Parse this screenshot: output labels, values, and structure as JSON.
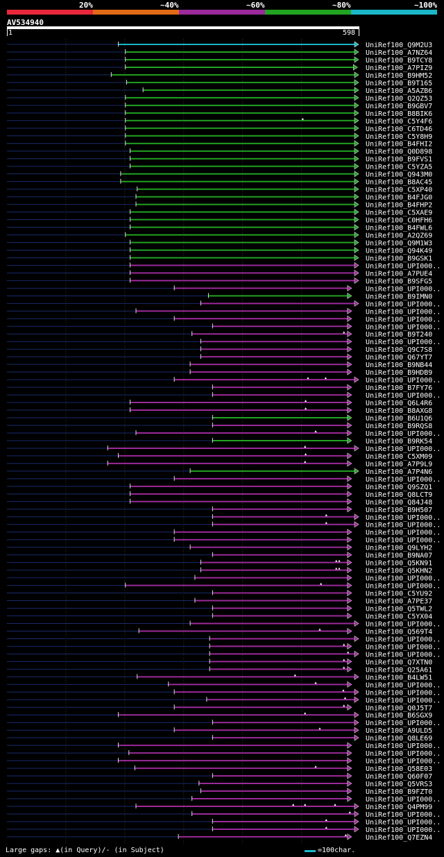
{
  "legend": {
    "labels": [
      "20%",
      "~40%",
      "~60%",
      "~80%",
      "~100%"
    ],
    "colors": [
      "#e8283a",
      "#e06a16",
      "#9b2a9a",
      "#22a322",
      "#1ab7c9"
    ]
  },
  "query": {
    "id": "AV534940",
    "start": "1",
    "end": "598"
  },
  "footer": {
    "gaps_note": "Large gaps: ▲(in Query)/- (in Subject)",
    "scale_note": "=100char."
  },
  "chart_data": {
    "type": "alignment",
    "query_length": 598,
    "bands": [
      "20%",
      "~40%",
      "~60%",
      "~80%",
      "~100%"
    ],
    "hits": [
      {
        "name": "UniRef100_Q9M2U3",
        "start": 190,
        "end": 598,
        "band": "~100%"
      },
      {
        "name": "UniRef100_A7NZ64",
        "start": 202,
        "end": 598,
        "band": "~80%"
      },
      {
        "name": "UniRef100_B9TCY8",
        "start": 202,
        "end": 598,
        "band": "~80%"
      },
      {
        "name": "UniRef100_A7PIZ9",
        "start": 202,
        "end": 596,
        "band": "~80%"
      },
      {
        "name": "UniRef100_B9HM52",
        "start": 178,
        "end": 598,
        "band": "~80%"
      },
      {
        "name": "UniRef100_B9T165",
        "start": 204,
        "end": 598,
        "band": "~80%"
      },
      {
        "name": "UniRef100_A5AZB6",
        "start": 232,
        "end": 598,
        "band": "~80%"
      },
      {
        "name": "UniRef100_Q2QZ53",
        "start": 202,
        "end": 598,
        "band": "~80%"
      },
      {
        "name": "UniRef100_B9GBV7",
        "start": 202,
        "end": 598,
        "band": "~80%"
      },
      {
        "name": "UniRef100_B8BIK6",
        "start": 202,
        "end": 598,
        "band": "~80%"
      },
      {
        "name": "UniRef100_C5Y4F6",
        "start": 202,
        "end": 598,
        "band": "~80%",
        "gaps": [
          503
        ]
      },
      {
        "name": "UniRef100_C6TD46",
        "start": 202,
        "end": 598,
        "band": "~80%"
      },
      {
        "name": "UniRef100_C5Y8H9",
        "start": 202,
        "end": 598,
        "band": "~80%"
      },
      {
        "name": "UniRef100_B4FHI2",
        "start": 202,
        "end": 598,
        "band": "~80%"
      },
      {
        "name": "UniRef100_Q0D898",
        "start": 210,
        "end": 598,
        "band": "~80%"
      },
      {
        "name": "UniRef100_B9FVS1",
        "start": 210,
        "end": 598,
        "band": "~80%"
      },
      {
        "name": "UniRef100_C5YZA5",
        "start": 210,
        "end": 598,
        "band": "~80%"
      },
      {
        "name": "UniRef100_Q943M0",
        "start": 194,
        "end": 598,
        "band": "~80%"
      },
      {
        "name": "UniRef100_B8AC45",
        "start": 194,
        "end": 598,
        "band": "~80%"
      },
      {
        "name": "UniRef100_C5XP40",
        "start": 222,
        "end": 598,
        "band": "~80%"
      },
      {
        "name": "UniRef100_B4FJG0",
        "start": 220,
        "end": 598,
        "band": "~80%"
      },
      {
        "name": "UniRef100_B4FHP2",
        "start": 220,
        "end": 598,
        "band": "~80%"
      },
      {
        "name": "UniRef100_C5XAE9",
        "start": 210,
        "end": 598,
        "band": "~80%"
      },
      {
        "name": "UniRef100_C0HFH6",
        "start": 210,
        "end": 598,
        "band": "~80%"
      },
      {
        "name": "UniRef100_B4FWL6",
        "start": 210,
        "end": 598,
        "band": "~80%"
      },
      {
        "name": "UniRef100_A2QZ69",
        "start": 202,
        "end": 598,
        "band": "~80%"
      },
      {
        "name": "UniRef100_Q9M1W3",
        "start": 210,
        "end": 598,
        "band": "~80%"
      },
      {
        "name": "UniRef100_Q94K49",
        "start": 210,
        "end": 598,
        "band": "~80%"
      },
      {
        "name": "UniRef100_B9GSK1",
        "start": 210,
        "end": 598,
        "band": "~80%"
      },
      {
        "name": "UniRef100_UPI000..",
        "start": 210,
        "end": 598,
        "band": "~60%"
      },
      {
        "name": "UniRef100_A7PUE4",
        "start": 210,
        "end": 598,
        "band": "~60%"
      },
      {
        "name": "UniRef100_B9SFG5",
        "start": 210,
        "end": 598,
        "band": "~60%"
      },
      {
        "name": "UniRef100_UPI000..",
        "start": 285,
        "end": 586,
        "band": "~60%"
      },
      {
        "name": "UniRef100_B9IMN0",
        "start": 343,
        "end": 586,
        "band": "~80%"
      },
      {
        "name": "UniRef100_UPI000..",
        "start": 330,
        "end": 598,
        "band": "~60%"
      },
      {
        "name": "UniRef100_UPI000..",
        "start": 220,
        "end": 586,
        "band": "~60%"
      },
      {
        "name": "UniRef100_UPI000..",
        "start": 285,
        "end": 586,
        "band": "~60%"
      },
      {
        "name": "UniRef100_UPI000..",
        "start": 350,
        "end": 586,
        "band": "~60%"
      },
      {
        "name": "UniRef100_B9T240",
        "start": 315,
        "end": 586,
        "band": "~60%",
        "gaps": [
          573
        ]
      },
      {
        "name": "UniRef100_UPI000..",
        "start": 330,
        "end": 586,
        "band": "~60%"
      },
      {
        "name": "UniRef100_Q9C7S8",
        "start": 330,
        "end": 586,
        "band": "~60%"
      },
      {
        "name": "UniRef100_Q67YT7",
        "start": 330,
        "end": 586,
        "band": "~60%"
      },
      {
        "name": "UniRef100_B9NB44",
        "start": 312,
        "end": 586,
        "band": "~60%"
      },
      {
        "name": "UniRef100_B9HDB9",
        "start": 312,
        "end": 586,
        "band": "~60%"
      },
      {
        "name": "UniRef100_UPI000..",
        "start": 285,
        "end": 598,
        "band": "~60%",
        "gaps": [
          512,
          542
        ]
      },
      {
        "name": "UniRef100_B7FY76",
        "start": 350,
        "end": 586,
        "band": "~60%"
      },
      {
        "name": "UniRef100_UPI000..",
        "start": 350,
        "end": 586,
        "band": "~60%"
      },
      {
        "name": "UniRef100_Q6L4R6",
        "start": 210,
        "end": 586,
        "band": "~60%",
        "gaps": [
          508
        ]
      },
      {
        "name": "UniRef100_B8AXG8",
        "start": 210,
        "end": 586,
        "band": "~60%",
        "gaps": [
          508
        ]
      },
      {
        "name": "UniRef100_B6U1Q6",
        "start": 350,
        "end": 586,
        "band": "~80%"
      },
      {
        "name": "UniRef100_B9RQS8",
        "start": 350,
        "end": 586,
        "band": "~60%"
      },
      {
        "name": "UniRef100_UPI000..",
        "start": 220,
        "end": 586,
        "band": "~60%",
        "gaps": [
          525
        ]
      },
      {
        "name": "UniRef100_B9RK54",
        "start": 350,
        "end": 586,
        "band": "~80%"
      },
      {
        "name": "UniRef100_UPI000..",
        "start": 172,
        "end": 598,
        "band": "~60%",
        "gaps": [
          507
        ]
      },
      {
        "name": "UniRef100_C5XM09",
        "start": 190,
        "end": 586,
        "band": "~60%",
        "gaps": [
          508
        ]
      },
      {
        "name": "UniRef100_A7P9L9",
        "start": 172,
        "end": 586,
        "band": "~60%",
        "gaps": [
          507
        ]
      },
      {
        "name": "UniRef100_A7P4N6",
        "start": 312,
        "end": 598,
        "band": "~80%"
      },
      {
        "name": "UniRef100_UPI000..",
        "start": 285,
        "end": 586,
        "band": "~60%"
      },
      {
        "name": "UniRef100_Q9SZQ1",
        "start": 210,
        "end": 586,
        "band": "~60%"
      },
      {
        "name": "UniRef100_Q8LCT9",
        "start": 210,
        "end": 586,
        "band": "~60%"
      },
      {
        "name": "UniRef100_Q84J48",
        "start": 210,
        "end": 586,
        "band": "~60%"
      },
      {
        "name": "UniRef100_B9H507",
        "start": 350,
        "end": 586,
        "band": "~60%"
      },
      {
        "name": "UniRef100_UPI000..",
        "start": 350,
        "end": 598,
        "band": "~60%",
        "gaps": [
          543
        ]
      },
      {
        "name": "UniRef100_UPI000..",
        "start": 350,
        "end": 598,
        "band": "~60%",
        "gaps": [
          543
        ]
      },
      {
        "name": "UniRef100_UPI000..",
        "start": 285,
        "end": 586,
        "band": "~60%"
      },
      {
        "name": "UniRef100_UPI000..",
        "start": 285,
        "end": 586,
        "band": "~60%"
      },
      {
        "name": "UniRef100_Q9LYH2",
        "start": 312,
        "end": 586,
        "band": "~60%"
      },
      {
        "name": "UniRef100_B9NA07",
        "start": 350,
        "end": 586,
        "band": "~60%"
      },
      {
        "name": "UniRef100_Q5KN91",
        "start": 330,
        "end": 586,
        "band": "~60%",
        "gaps": [
          560,
          565
        ]
      },
      {
        "name": "UniRef100_Q5KHN2",
        "start": 330,
        "end": 586,
        "band": "~60%",
        "gaps": [
          560,
          565
        ]
      },
      {
        "name": "UniRef100_UPI000..",
        "start": 320,
        "end": 586,
        "band": "~60%"
      },
      {
        "name": "UniRef100_UPI000..",
        "start": 202,
        "end": 586,
        "band": "~60%",
        "gaps": [
          534
        ]
      },
      {
        "name": "UniRef100_C5YU92",
        "start": 350,
        "end": 586,
        "band": "~60%"
      },
      {
        "name": "UniRef100_A7PE37",
        "start": 320,
        "end": 586,
        "band": "~60%"
      },
      {
        "name": "UniRef100_Q5TWL2",
        "start": 350,
        "end": 586,
        "band": "~60%"
      },
      {
        "name": "UniRef100_C5YX04",
        "start": 350,
        "end": 586,
        "band": "~60%"
      },
      {
        "name": "UniRef100_UPI000..",
        "start": 312,
        "end": 598,
        "band": "~60%"
      },
      {
        "name": "UniRef100_Q569T4",
        "start": 225,
        "end": 586,
        "band": "~60%",
        "gaps": [
          532
        ]
      },
      {
        "name": "UniRef100_UPI000..",
        "start": 345,
        "end": 598,
        "band": "~60%"
      },
      {
        "name": "UniRef100_UPI000..",
        "start": 345,
        "end": 586,
        "band": "~60%",
        "gaps": [
          573
        ]
      },
      {
        "name": "UniRef100_UPI000..",
        "start": 345,
        "end": 598,
        "band": "~60%",
        "gaps": [
          580
        ]
      },
      {
        "name": "UniRef100_Q7XTN0",
        "start": 345,
        "end": 586,
        "band": "~60%",
        "gaps": [
          573
        ]
      },
      {
        "name": "UniRef100_Q25A61",
        "start": 345,
        "end": 586,
        "band": "~60%",
        "gaps": [
          573
        ]
      },
      {
        "name": "UniRef100_B4LW51",
        "start": 222,
        "end": 598,
        "band": "~60%",
        "gaps": [
          490
        ]
      },
      {
        "name": "UniRef100_UPI000..",
        "start": 275,
        "end": 586,
        "band": "~60%",
        "gaps": [
          525
        ]
      },
      {
        "name": "UniRef100_UPI000..",
        "start": 285,
        "end": 598,
        "band": "~60%",
        "gaps": [
          572
        ]
      },
      {
        "name": "UniRef100_UPI000..",
        "start": 340,
        "end": 598,
        "band": "~60%",
        "gaps": [
          575
        ]
      },
      {
        "name": "UniRef100_Q0J5T7",
        "start": 285,
        "end": 586,
        "band": "~60%",
        "gaps": [
          573
        ]
      },
      {
        "name": "UniRef100_B6SGX9",
        "start": 190,
        "end": 598,
        "band": "~60%",
        "gaps": [
          507
        ]
      },
      {
        "name": "UniRef100_UPI000..",
        "start": 350,
        "end": 598,
        "band": "~60%"
      },
      {
        "name": "UniRef100_A9ULD5",
        "start": 285,
        "end": 598,
        "band": "~60%",
        "gaps": [
          532
        ]
      },
      {
        "name": "UniRef100_Q8LE69",
        "start": 350,
        "end": 598,
        "band": "~60%"
      },
      {
        "name": "UniRef100_UPI000..",
        "start": 190,
        "end": 586,
        "band": "~60%"
      },
      {
        "name": "UniRef100_UPI000..",
        "start": 208,
        "end": 586,
        "band": "~60%"
      },
      {
        "name": "UniRef100_UPI000..",
        "start": 190,
        "end": 586,
        "band": "~60%"
      },
      {
        "name": "UniRef100_Q58E03",
        "start": 218,
        "end": 586,
        "band": "~60%",
        "gaps": [
          525
        ]
      },
      {
        "name": "UniRef100_Q60F07",
        "start": 350,
        "end": 586,
        "band": "~60%"
      },
      {
        "name": "UniRef100_Q5VRS3",
        "start": 327,
        "end": 586,
        "band": "~60%"
      },
      {
        "name": "UniRef100_B9FZT0",
        "start": 330,
        "end": 586,
        "band": "~60%"
      },
      {
        "name": "UniRef100_UPI000..",
        "start": 315,
        "end": 586,
        "band": "~60%"
      },
      {
        "name": "UniRef100_Q4PM99",
        "start": 220,
        "end": 598,
        "band": "~60%",
        "gaps": [
          487,
          507,
          558
        ]
      },
      {
        "name": "UniRef100_UPI000..",
        "start": 315,
        "end": 598,
        "band": "~60%",
        "gaps": [
          583
        ]
      },
      {
        "name": "UniRef100_UPI000..",
        "start": 350,
        "end": 598,
        "band": "~60%",
        "gaps": [
          543
        ]
      },
      {
        "name": "UniRef100_UPI000..",
        "start": 350,
        "end": 598,
        "band": "~60%",
        "gaps": [
          543
        ]
      },
      {
        "name": "UniRef100_Q7EZN4",
        "start": 292,
        "end": 586,
        "band": "~60%",
        "gaps": [
          576
        ]
      }
    ]
  }
}
